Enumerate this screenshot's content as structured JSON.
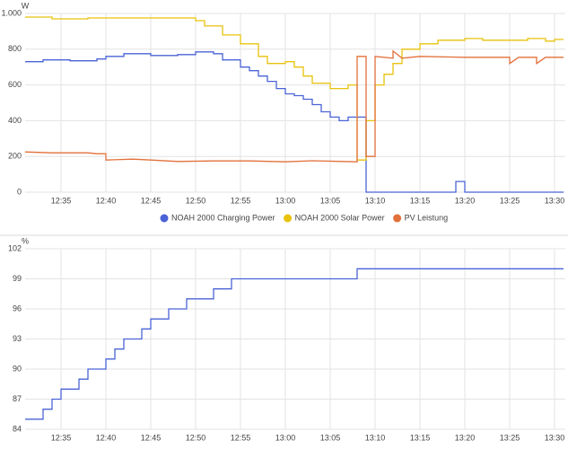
{
  "chart_data": [
    {
      "type": "line",
      "y_label": "W",
      "xlim": [
        "12:31",
        "13:31"
      ],
      "xticks": [
        "12:35",
        "12:40",
        "12:45",
        "12:50",
        "12:55",
        "13:00",
        "13:05",
        "13:10",
        "13:15",
        "13:20",
        "13:25",
        "13:30"
      ],
      "ylim": [
        0,
        1000
      ],
      "yticks": [
        0,
        200,
        400,
        600,
        800,
        {
          "value": 1000,
          "label": "1.000"
        }
      ],
      "grid": true,
      "legend": "bottom",
      "series": [
        {
          "name": "NOAH 2000 Charging Power",
          "color": "#4a63d6",
          "x": [
            "12:31",
            "12:33",
            "12:33",
            "12:36",
            "12:36",
            "12:39",
            "12:39",
            "12:40",
            "12:40",
            "12:42",
            "12:42",
            "12:45",
            "12:45",
            "12:48",
            "12:48",
            "12:50",
            "12:50",
            "12:52",
            "12:52",
            "12:53",
            "12:53",
            "12:55",
            "12:55",
            "12:56",
            "12:56",
            "12:57",
            "12:57",
            "12:58",
            "12:58",
            "12:59",
            "12:59",
            "13:00",
            "13:00",
            "13:01",
            "13:01",
            "13:02",
            "13:02",
            "13:03",
            "13:03",
            "13:04",
            "13:04",
            "13:05",
            "13:05",
            "13:06",
            "13:06",
            "13:07",
            "13:07",
            "13:09",
            "13:09",
            "13:19",
            "13:19",
            "13:20",
            "13:20",
            "13:31"
          ],
          "values": [
            730,
            730,
            740,
            740,
            735,
            735,
            745,
            745,
            760,
            760,
            775,
            775,
            765,
            765,
            770,
            770,
            785,
            785,
            775,
            775,
            740,
            740,
            700,
            700,
            680,
            680,
            650,
            650,
            620,
            620,
            580,
            580,
            550,
            550,
            540,
            540,
            520,
            520,
            490,
            490,
            450,
            450,
            420,
            420,
            400,
            400,
            420,
            420,
            0,
            0,
            60,
            60,
            0,
            0
          ]
        },
        {
          "name": "NOAH 2000 Solar Power",
          "color": "#e8c20c",
          "x": [
            "12:31",
            "12:34",
            "12:34",
            "12:38",
            "12:38",
            "12:50",
            "12:50",
            "12:51",
            "12:51",
            "12:53",
            "12:53",
            "12:55",
            "12:55",
            "12:57",
            "12:57",
            "12:58",
            "12:58",
            "13:00",
            "13:00",
            "13:01",
            "13:01",
            "13:02",
            "13:02",
            "13:03",
            "13:03",
            "13:05",
            "13:05",
            "13:07",
            "13:07",
            "13:08",
            "13:08",
            "13:09",
            "13:09",
            "13:10",
            "13:10",
            "13:11",
            "13:11",
            "13:12",
            "13:12",
            "13:13",
            "13:13",
            "13:15",
            "13:15",
            "13:17",
            "13:17",
            "13:20",
            "13:20",
            "13:22",
            "13:22",
            "13:27",
            "13:27",
            "13:29",
            "13:29",
            "13:30",
            "13:30",
            "13:31"
          ],
          "values": [
            980,
            980,
            970,
            970,
            975,
            975,
            960,
            960,
            930,
            930,
            880,
            880,
            830,
            830,
            760,
            760,
            720,
            720,
            730,
            730,
            700,
            700,
            650,
            650,
            610,
            610,
            580,
            580,
            600,
            600,
            180,
            180,
            400,
            400,
            600,
            600,
            660,
            660,
            720,
            720,
            800,
            800,
            830,
            830,
            850,
            850,
            860,
            860,
            850,
            850,
            860,
            860,
            845,
            845,
            855,
            855
          ]
        },
        {
          "name": "PV Leistung",
          "color": "#e2703a",
          "x": [
            "12:31",
            "12:34",
            "12:38",
            "12:39",
            "12:40",
            "12:40",
            "12:43",
            "12:45",
            "12:48",
            "12:52",
            "12:56",
            "13:00",
            "13:03",
            "13:08",
            "13:08",
            "13:09",
            "13:09",
            "13:10",
            "13:10",
            "13:12",
            "13:12",
            "13:13",
            "13:15",
            "13:20",
            "13:25",
            "13:25",
            "13:26",
            "13:28",
            "13:28",
            "13:29",
            "13:31"
          ],
          "values": [
            225,
            220,
            220,
            215,
            215,
            180,
            185,
            180,
            172,
            175,
            175,
            170,
            176,
            170,
            760,
            760,
            200,
            200,
            760,
            750,
            790,
            750,
            760,
            755,
            755,
            720,
            755,
            755,
            720,
            755,
            755
          ]
        }
      ]
    },
    {
      "type": "line",
      "y_label": "%",
      "xlim": [
        "12:31",
        "13:31"
      ],
      "xticks": [
        "12:35",
        "12:40",
        "12:45",
        "12:50",
        "12:55",
        "13:00",
        "13:05",
        "13:10",
        "13:15",
        "13:20",
        "13:25",
        "13:30"
      ],
      "ylim": [
        84,
        102
      ],
      "yticks": [
        84,
        87,
        90,
        93,
        96,
        99,
        102
      ],
      "grid": true,
      "series": [
        {
          "color": "#4a63d6",
          "x": [
            "12:31",
            "12:33",
            "12:33",
            "12:34",
            "12:34",
            "12:35",
            "12:35",
            "12:37",
            "12:37",
            "12:38",
            "12:38",
            "12:40",
            "12:40",
            "12:41",
            "12:41",
            "12:42",
            "12:42",
            "12:44",
            "12:44",
            "12:45",
            "12:45",
            "12:47",
            "12:47",
            "12:49",
            "12:49",
            "12:52",
            "12:52",
            "12:54",
            "12:54",
            "13:08",
            "13:08",
            "13:31"
          ],
          "values": [
            85,
            85,
            86,
            86,
            87,
            87,
            88,
            88,
            89,
            89,
            90,
            90,
            91,
            91,
            92,
            92,
            93,
            93,
            94,
            94,
            95,
            95,
            96,
            96,
            97,
            97,
            98,
            98,
            99,
            99,
            100,
            100
          ]
        }
      ]
    }
  ]
}
